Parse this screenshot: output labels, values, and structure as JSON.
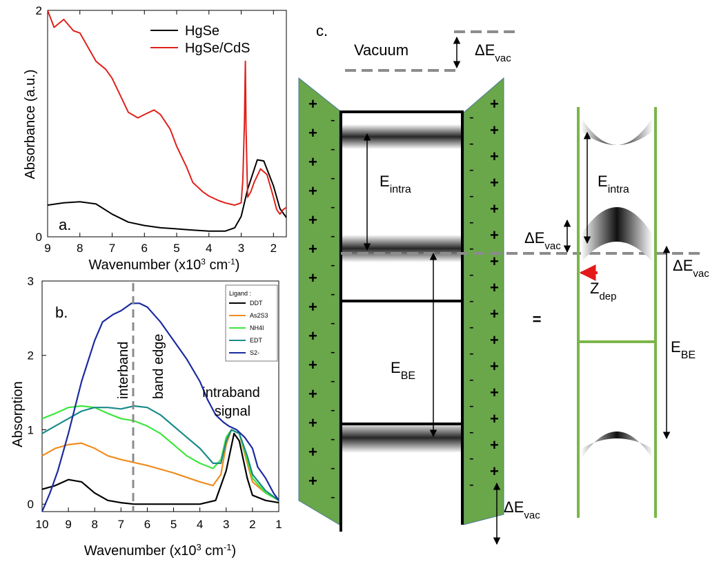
{
  "panel_a": {
    "letter": "a.",
    "xlabel_main": "Wavenumber (x10",
    "xlabel_sup": "3",
    "xlabel_unit": " cm",
    "xlabel_sup2": "-1",
    "xlabel_close": ")",
    "ylabel": "Absorbance (a.u.)",
    "x_ticks": [
      "9",
      "8",
      "7",
      "6",
      "5",
      "4",
      "3",
      "2"
    ],
    "y_ticks": [
      "0",
      "2"
    ],
    "legend": [
      "HgSe",
      "HgSe/CdS"
    ]
  },
  "panel_b": {
    "letter": "b.",
    "xlabel_main": "Wavenumber (x10",
    "xlabel_sup": "3",
    "xlabel_unit": " cm",
    "xlabel_sup2": "-1",
    "xlabel_close": ")",
    "ylabel": "Absorption",
    "x_ticks": [
      "10",
      "9",
      "8",
      "7",
      "6",
      "5",
      "4",
      "3",
      "2",
      "1"
    ],
    "y_ticks": [
      "0",
      "1",
      "2",
      "3"
    ],
    "legend_title": "Ligand :",
    "legend": [
      "DDT",
      "As2S3",
      "NH4I",
      "EDT",
      "S2-"
    ],
    "annot_interband": "interband",
    "annot_bandedge": "band edge",
    "annot_intraband": "intraband",
    "annot_signal": "signal"
  },
  "panel_c": {
    "letter": "c.",
    "vacuum": "Vacuum",
    "dE_main": "ΔE",
    "dE_sub": "vac",
    "E_main": "E",
    "intra_sub": "intra",
    "BE_sub": "BE",
    "Z_main": "Z",
    "dep_sub": "dep",
    "equals": "="
  },
  "colors": {
    "hgse": "#000000",
    "hgse_cds": "#e0201a",
    "ddt": "#000000",
    "as2s3": "#f08c1e",
    "nh4i": "#3ee63e",
    "edt": "#1a8a8a",
    "s2": "#1a2aa0",
    "green_fill": "#6aa64a",
    "green_line": "#7ab648",
    "dashed": "#8c8c8c",
    "red_arrow": "#e41a1a"
  },
  "chart_data": [
    {
      "type": "line",
      "panel": "a",
      "xlabel": "Wavenumber (x10^3 cm^-1)",
      "ylabel": "Absorbance (a.u.)",
      "xlim": [
        9,
        1.6
      ],
      "ylim": [
        0,
        2
      ],
      "series": [
        {
          "name": "HgSe",
          "x": [
            9,
            8.5,
            8,
            7.5,
            7,
            6.5,
            6,
            5.5,
            5,
            4.5,
            4,
            3.5,
            3.2,
            3,
            2.8,
            2.5,
            2.3,
            2,
            1.8,
            1.6
          ],
          "y": [
            0.28,
            0.3,
            0.31,
            0.29,
            0.2,
            0.13,
            0.1,
            0.08,
            0.07,
            0.06,
            0.05,
            0.05,
            0.08,
            0.18,
            0.42,
            0.68,
            0.67,
            0.45,
            0.25,
            0.17
          ]
        },
        {
          "name": "HgSe/CdS",
          "x": [
            9,
            8.8,
            8.5,
            8.2,
            8,
            7.7,
            7.5,
            7.2,
            7,
            6.8,
            6.5,
            6.2,
            6,
            5.7,
            5.5,
            5.2,
            5,
            4.7,
            4.5,
            4.2,
            4,
            3.7,
            3.5,
            3.2,
            3.0,
            2.95,
            2.9,
            2.87,
            2.85,
            2.8,
            2.7,
            2.6,
            2.4,
            2.2,
            2.0,
            1.9,
            1.8,
            1.7,
            1.6
          ],
          "y": [
            2.0,
            1.85,
            1.92,
            1.82,
            1.8,
            1.65,
            1.55,
            1.48,
            1.4,
            1.28,
            1.1,
            1.05,
            1.08,
            1.12,
            1.08,
            0.95,
            0.8,
            0.62,
            0.48,
            0.4,
            0.36,
            0.32,
            0.3,
            0.28,
            0.3,
            0.5,
            1.0,
            1.55,
            0.95,
            0.35,
            0.4,
            0.48,
            0.6,
            0.55,
            0.35,
            0.24,
            0.2,
            0.24,
            0.26
          ]
        }
      ]
    },
    {
      "type": "line",
      "panel": "b",
      "xlabel": "Wavenumber (x10^3 cm^-1)",
      "ylabel": "Absorption",
      "xlim": [
        10,
        1
      ],
      "ylim": [
        0,
        3
      ],
      "series": [
        {
          "name": "DDT",
          "x": [
            10,
            9.5,
            9,
            8.5,
            8,
            7.5,
            7,
            6.5,
            6,
            5,
            4,
            3.4,
            3.0,
            2.7,
            2.5,
            2.2,
            2,
            1.5,
            1
          ],
          "y": [
            0.2,
            0.25,
            0.33,
            0.3,
            0.15,
            0.05,
            0.02,
            0.0,
            0.0,
            0.0,
            0.0,
            0.05,
            0.45,
            0.95,
            0.85,
            0.35,
            0.12,
            0.05,
            0.02
          ]
        },
        {
          "name": "As2S3",
          "x": [
            10,
            9.5,
            9,
            8.5,
            8,
            7.5,
            7,
            6.5,
            6,
            5,
            4,
            3.5,
            3.2,
            3.0,
            2.8,
            2.5,
            2.2,
            2,
            1.5,
            1
          ],
          "y": [
            0.65,
            0.75,
            0.8,
            0.82,
            0.75,
            0.65,
            0.6,
            0.56,
            0.52,
            0.42,
            0.3,
            0.25,
            0.4,
            0.8,
            1.0,
            0.95,
            0.55,
            0.3,
            0.15,
            0.05
          ]
        },
        {
          "name": "NH4I",
          "x": [
            10,
            9.5,
            9,
            8.5,
            8,
            7.5,
            7,
            6.5,
            6,
            5.5,
            5,
            4.5,
            4,
            3.5,
            3.2,
            3.0,
            2.8,
            2.5,
            2.2,
            2,
            1.5,
            1
          ],
          "y": [
            1.15,
            1.22,
            1.3,
            1.32,
            1.3,
            1.22,
            1.15,
            1.12,
            1.05,
            0.95,
            0.8,
            0.65,
            0.55,
            0.48,
            0.6,
            0.9,
            1.0,
            0.95,
            0.6,
            0.35,
            0.15,
            0.05
          ]
        },
        {
          "name": "EDT",
          "x": [
            10,
            9.5,
            9,
            8.5,
            8,
            7.5,
            7,
            6.5,
            6,
            5.5,
            5,
            4.5,
            4,
            3.5,
            3.2,
            3.0,
            2.8,
            2.5,
            2.2,
            2,
            1.5,
            1
          ],
          "y": [
            0.95,
            1.05,
            1.15,
            1.25,
            1.3,
            1.3,
            1.28,
            1.32,
            1.3,
            1.2,
            1.05,
            0.9,
            0.75,
            0.55,
            0.55,
            0.85,
            1.0,
            0.95,
            0.65,
            0.4,
            0.18,
            0.05
          ]
        },
        {
          "name": "S2-",
          "x": [
            10,
            9.7,
            9.4,
            9,
            8.5,
            8,
            7.7,
            7.3,
            7,
            6.6,
            6.3,
            6,
            5.5,
            5,
            4.5,
            4,
            3.7,
            3.4,
            3.1,
            2.9,
            2.6,
            2.3,
            2,
            1.8,
            1.5,
            1.2,
            1
          ],
          "y": [
            -0.1,
            0.15,
            0.45,
            0.95,
            1.65,
            2.2,
            2.45,
            2.55,
            2.6,
            2.7,
            2.7,
            2.65,
            2.45,
            2.2,
            1.95,
            1.65,
            1.4,
            1.2,
            1.1,
            1.05,
            1.0,
            0.9,
            0.75,
            0.5,
            0.35,
            0.15,
            0.05
          ]
        }
      ]
    }
  ]
}
